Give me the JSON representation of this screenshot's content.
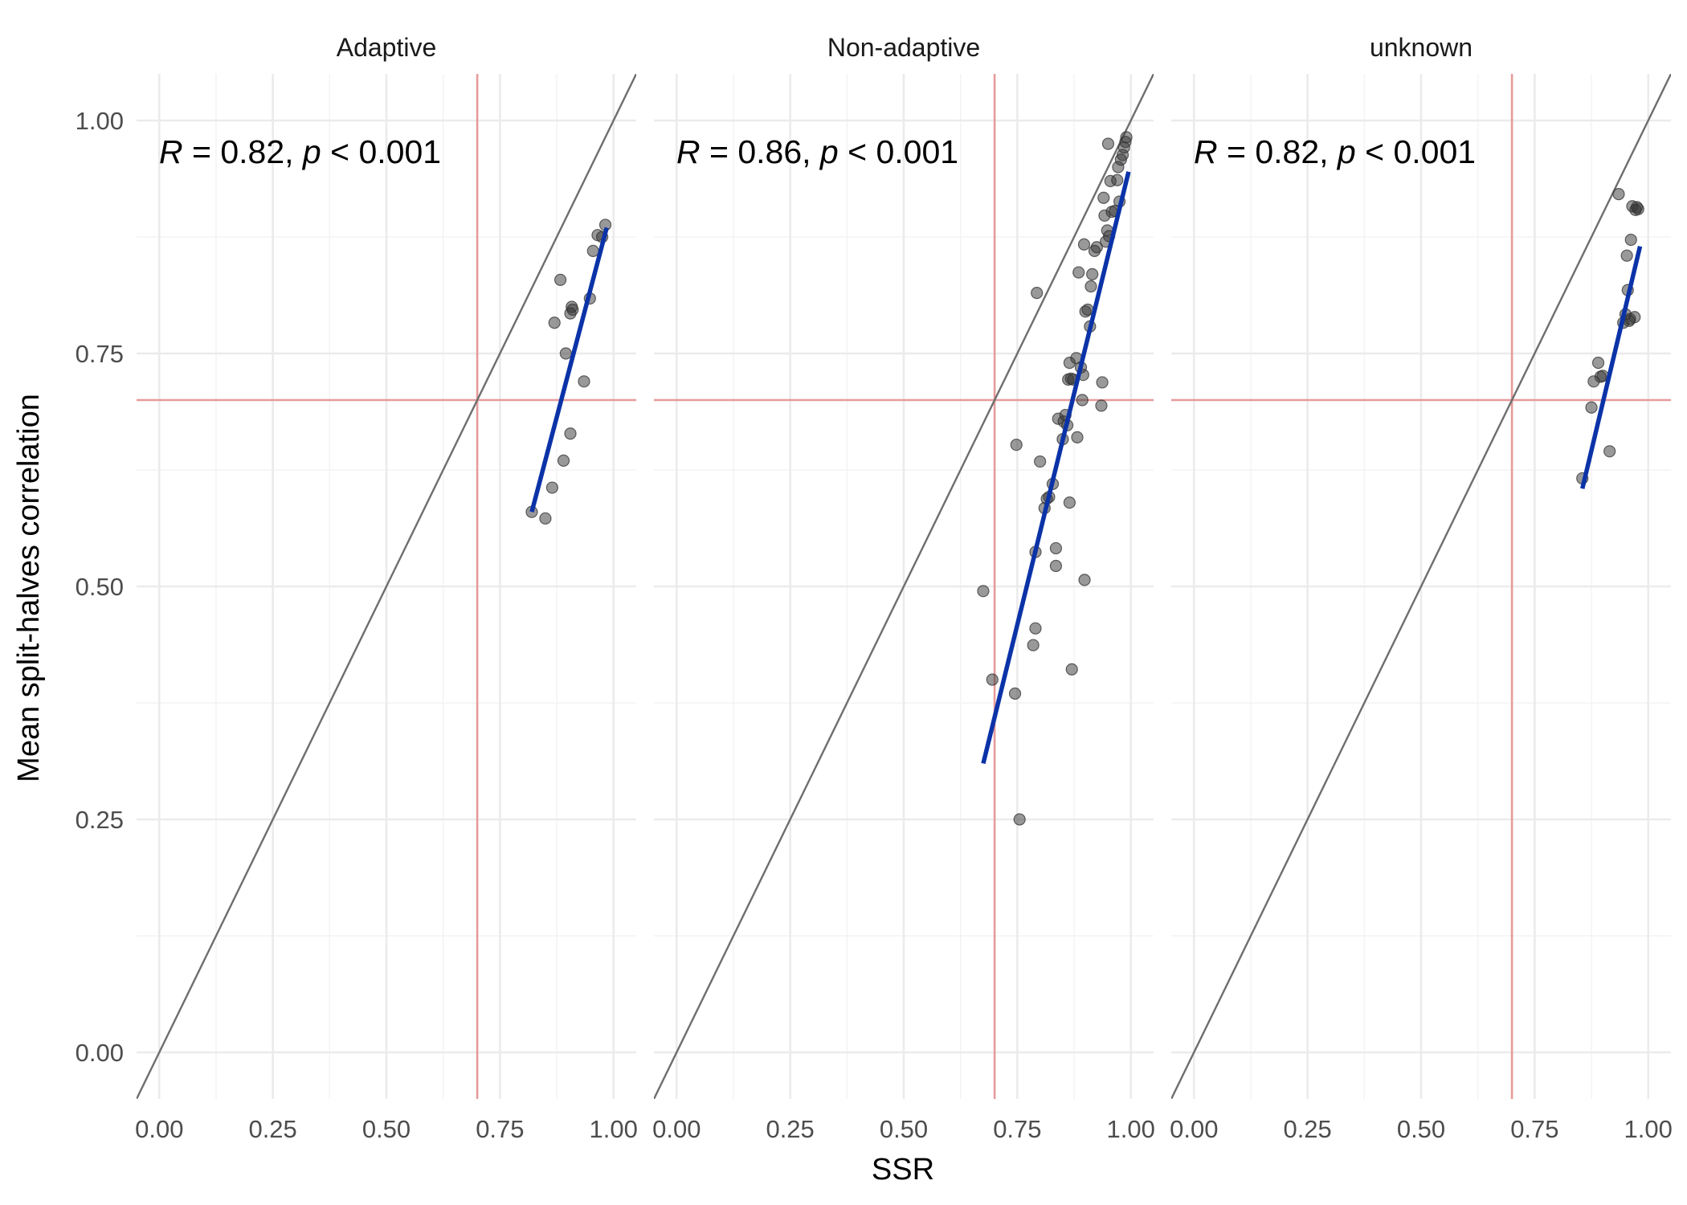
{
  "chart_data": {
    "type": "scatter",
    "xlabel": "SSR",
    "ylabel": "Mean split-halves correlation",
    "xlim": [
      -0.05,
      1.05
    ],
    "ylim": [
      -0.05,
      1.05
    ],
    "x_ticks": [
      "0.00",
      "0.25",
      "0.50",
      "0.75",
      "1.00"
    ],
    "y_ticks": [
      "0.00",
      "0.25",
      "0.50",
      "0.75",
      "1.00"
    ],
    "reference_lines": {
      "identity": true,
      "vertical_x": 0.7,
      "horizontal_y": 0.7
    },
    "colors": {
      "points": "#333333",
      "fit": "#0b33a8",
      "reference": "#e79a9a",
      "identity": "#6e6e6e"
    },
    "facets": [
      {
        "name": "Adaptive",
        "stat": {
          "r_symbol": "R",
          "r_value": " = 0.82, ",
          "p_symbol": "p",
          "p_value": " < 0.001"
        },
        "fit": {
          "x": [
            0.82,
            0.985
          ],
          "y": [
            0.58,
            0.885
          ]
        },
        "points": [
          [
            0.82,
            0.58
          ],
          [
            0.85,
            0.573
          ],
          [
            0.865,
            0.606
          ],
          [
            0.87,
            0.783
          ],
          [
            0.883,
            0.829
          ],
          [
            0.89,
            0.635
          ],
          [
            0.895,
            0.75
          ],
          [
            0.905,
            0.664
          ],
          [
            0.905,
            0.793
          ],
          [
            0.908,
            0.8
          ],
          [
            0.91,
            0.797
          ],
          [
            0.935,
            0.72
          ],
          [
            0.948,
            0.809
          ],
          [
            0.955,
            0.86
          ],
          [
            0.965,
            0.877
          ],
          [
            0.975,
            0.875
          ],
          [
            0.982,
            0.888
          ]
        ]
      },
      {
        "name": "Non-adaptive",
        "stat": {
          "r_symbol": "R",
          "r_value": " = 0.86, ",
          "p_symbol": "p",
          "p_value": " < 0.001"
        },
        "fit": {
          "x": [
            0.675,
            0.995
          ],
          "y": [
            0.31,
            0.945
          ]
        },
        "points": [
          [
            0.675,
            0.495
          ],
          [
            0.695,
            0.4
          ],
          [
            0.745,
            0.385
          ],
          [
            0.748,
            0.652
          ],
          [
            0.755,
            0.25
          ],
          [
            0.785,
            0.437
          ],
          [
            0.79,
            0.455
          ],
          [
            0.79,
            0.537
          ],
          [
            0.793,
            0.815
          ],
          [
            0.8,
            0.634
          ],
          [
            0.81,
            0.584
          ],
          [
            0.815,
            0.594
          ],
          [
            0.82,
            0.596
          ],
          [
            0.828,
            0.61
          ],
          [
            0.835,
            0.541
          ],
          [
            0.835,
            0.522
          ],
          [
            0.84,
            0.68
          ],
          [
            0.85,
            0.658
          ],
          [
            0.852,
            0.677
          ],
          [
            0.856,
            0.684
          ],
          [
            0.86,
            0.673
          ],
          [
            0.862,
            0.722
          ],
          [
            0.865,
            0.74
          ],
          [
            0.865,
            0.59
          ],
          [
            0.868,
            0.723
          ],
          [
            0.87,
            0.411
          ],
          [
            0.873,
            0.722
          ],
          [
            0.88,
            0.745
          ],
          [
            0.882,
            0.66
          ],
          [
            0.885,
            0.837
          ],
          [
            0.89,
            0.735
          ],
          [
            0.893,
            0.7
          ],
          [
            0.895,
            0.727
          ],
          [
            0.897,
            0.867
          ],
          [
            0.898,
            0.507
          ],
          [
            0.9,
            0.795
          ],
          [
            0.905,
            0.797
          ],
          [
            0.91,
            0.779
          ],
          [
            0.912,
            0.822
          ],
          [
            0.915,
            0.835
          ],
          [
            0.92,
            0.86
          ],
          [
            0.925,
            0.864
          ],
          [
            0.935,
            0.694
          ],
          [
            0.937,
            0.719
          ],
          [
            0.94,
            0.917
          ],
          [
            0.942,
            0.898
          ],
          [
            0.945,
            0.87
          ],
          [
            0.948,
            0.882
          ],
          [
            0.95,
            0.975
          ],
          [
            0.952,
            0.876
          ],
          [
            0.955,
            0.935
          ],
          [
            0.958,
            0.902
          ],
          [
            0.965,
            0.903
          ],
          [
            0.97,
            0.936
          ],
          [
            0.972,
            0.95
          ],
          [
            0.975,
            0.913
          ],
          [
            0.978,
            0.958
          ],
          [
            0.982,
            0.963
          ],
          [
            0.985,
            0.971
          ],
          [
            0.988,
            0.977
          ],
          [
            0.99,
            0.982
          ]
        ]
      },
      {
        "name": "unknown",
        "stat": {
          "r_symbol": "R",
          "r_value": " = 0.82, ",
          "p_symbol": "p",
          "p_value": " < 0.001"
        },
        "fit": {
          "x": [
            0.855,
            0.982
          ],
          "y": [
            0.605,
            0.865
          ]
        },
        "points": [
          [
            0.855,
            0.616
          ],
          [
            0.875,
            0.692
          ],
          [
            0.88,
            0.72
          ],
          [
            0.89,
            0.74
          ],
          [
            0.895,
            0.725
          ],
          [
            0.9,
            0.726
          ],
          [
            0.915,
            0.645
          ],
          [
            0.935,
            0.921
          ],
          [
            0.945,
            0.783
          ],
          [
            0.95,
            0.792
          ],
          [
            0.953,
            0.855
          ],
          [
            0.955,
            0.818
          ],
          [
            0.958,
            0.785
          ],
          [
            0.96,
            0.787
          ],
          [
            0.962,
            0.872
          ],
          [
            0.965,
            0.908
          ],
          [
            0.97,
            0.789
          ],
          [
            0.972,
            0.904
          ],
          [
            0.975,
            0.907
          ],
          [
            0.978,
            0.905
          ]
        ]
      }
    ]
  }
}
